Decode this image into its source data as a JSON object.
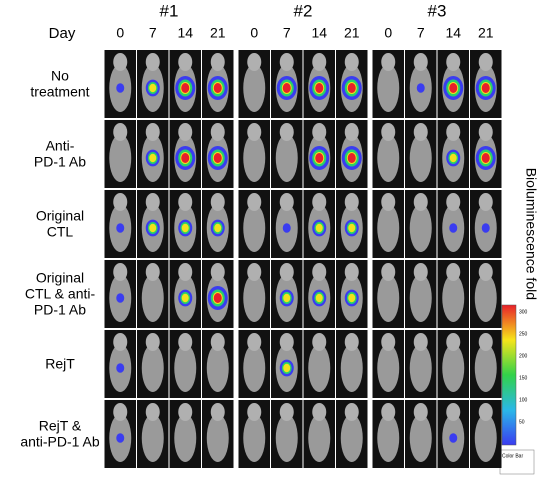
{
  "day_header": "Day",
  "groups": [
    {
      "label": "#1",
      "days": [
        "0",
        "7",
        "14",
        "21"
      ]
    },
    {
      "label": "#2",
      "days": [
        "0",
        "7",
        "14",
        "21"
      ]
    },
    {
      "label": "#3",
      "days": [
        "0",
        "7",
        "14",
        "21"
      ]
    }
  ],
  "rows": [
    {
      "lines": [
        "No",
        "treatment"
      ]
    },
    {
      "lines": [
        "Anti-",
        "PD-1 Ab"
      ]
    },
    {
      "lines": [
        "Original",
        "CTL"
      ]
    },
    {
      "lines": [
        "Original",
        "CTL & anti-",
        "PD-1 Ab"
      ]
    },
    {
      "lines": [
        "RejT"
      ]
    },
    {
      "lines": [
        "RejT &",
        "anti-PD-1 Ab"
      ]
    }
  ],
  "colorbar": {
    "title": "Bioluminescence fold",
    "ticks": [
      "300",
      "250",
      "200",
      "150",
      "100",
      "50"
    ],
    "caption": "Color Bar"
  }
}
